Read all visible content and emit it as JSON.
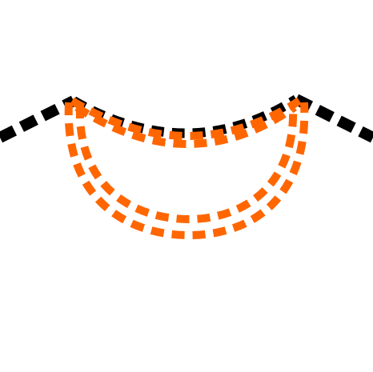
{
  "diagram": {
    "subject": "neckline",
    "colors": {
      "background": "#ffffff",
      "shoulder_seam": "#000000",
      "stitching": "#ff6600"
    }
  }
}
